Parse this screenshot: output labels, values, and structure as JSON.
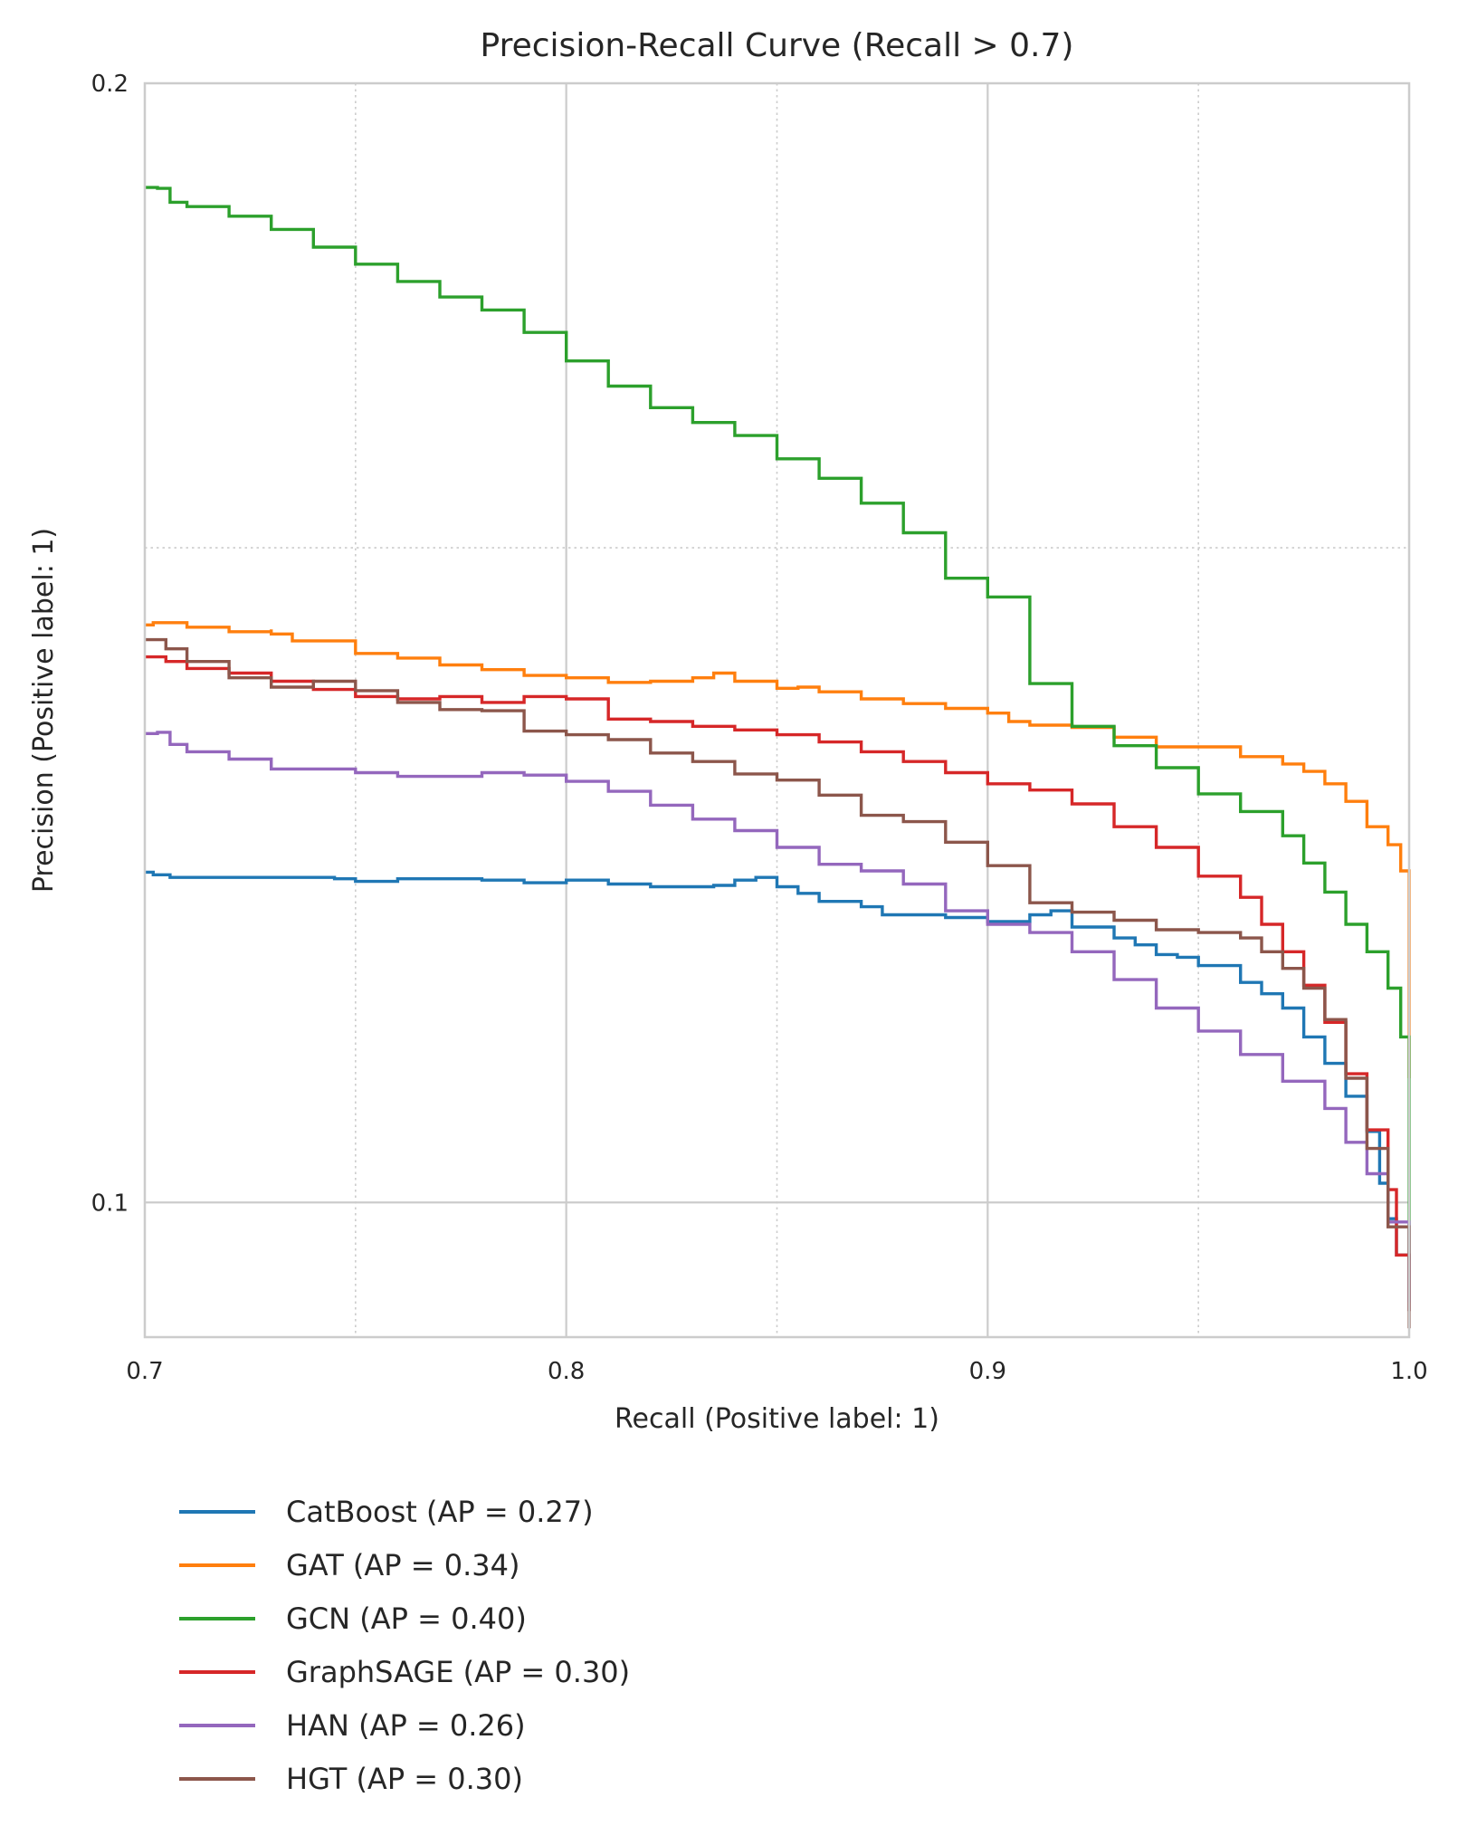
{
  "chart_data": {
    "type": "line",
    "title": "Precision-Recall Curve (Recall > 0.7)",
    "xlabel": "Recall (Positive label: 1)",
    "ylabel": "Precision (Positive label: 1)",
    "xlim": [
      0.7,
      1.0
    ],
    "ylim": [
      0.092,
      0.2
    ],
    "yscale": "log",
    "xticks": [
      0.7,
      0.8,
      0.9,
      1.0
    ],
    "xtick_labels": [
      "0.7",
      "0.8",
      "0.9",
      "1.0"
    ],
    "xminor": [
      0.75,
      0.85,
      0.95
    ],
    "yticks": [
      0.1,
      0.2
    ],
    "ytick_labels": [
      "0.1",
      "0.2"
    ],
    "yminor": [
      0.15
    ],
    "grid": true,
    "legend_position": "bottom-left, below plot",
    "series": [
      {
        "name": "CatBoost (AP = 0.27)",
        "color": "#1f77b4",
        "points": [
          [
            0.7,
            0.1227
          ],
          [
            0.702,
            0.1225
          ],
          [
            0.706,
            0.1223
          ],
          [
            0.72,
            0.1223
          ],
          [
            0.745,
            0.1222
          ],
          [
            0.75,
            0.122
          ],
          [
            0.76,
            0.1222
          ],
          [
            0.78,
            0.1221
          ],
          [
            0.79,
            0.1219
          ],
          [
            0.8,
            0.1221
          ],
          [
            0.81,
            0.1218
          ],
          [
            0.82,
            0.1216
          ],
          [
            0.835,
            0.1217
          ],
          [
            0.84,
            0.1221
          ],
          [
            0.845,
            0.1223
          ],
          [
            0.85,
            0.1216
          ],
          [
            0.855,
            0.1211
          ],
          [
            0.86,
            0.1205
          ],
          [
            0.87,
            0.1201
          ],
          [
            0.875,
            0.1195
          ],
          [
            0.89,
            0.1193
          ],
          [
            0.9,
            0.119
          ],
          [
            0.91,
            0.1195
          ],
          [
            0.915,
            0.1198
          ],
          [
            0.92,
            0.1186
          ],
          [
            0.93,
            0.1178
          ],
          [
            0.935,
            0.1173
          ],
          [
            0.94,
            0.1166
          ],
          [
            0.945,
            0.1164
          ],
          [
            0.95,
            0.1158
          ],
          [
            0.96,
            0.1146
          ],
          [
            0.965,
            0.1138
          ],
          [
            0.97,
            0.1128
          ],
          [
            0.975,
            0.1108
          ],
          [
            0.98,
            0.109
          ],
          [
            0.985,
            0.1068
          ],
          [
            0.99,
            0.1045
          ],
          [
            0.993,
            0.1012
          ],
          [
            0.995,
            0.099
          ],
          [
            0.997,
            0.0968
          ],
          [
            1.0,
            0.0935
          ]
        ]
      },
      {
        "name": "GAT (AP = 0.34)",
        "color": "#ff7f0e",
        "points": [
          [
            0.7,
            0.143
          ],
          [
            0.702,
            0.1432
          ],
          [
            0.71,
            0.1428
          ],
          [
            0.72,
            0.1424
          ],
          [
            0.73,
            0.1426
          ],
          [
            0.73,
            0.1422
          ],
          [
            0.735,
            0.1416
          ],
          [
            0.75,
            0.1405
          ],
          [
            0.76,
            0.1401
          ],
          [
            0.77,
            0.1395
          ],
          [
            0.78,
            0.1391
          ],
          [
            0.79,
            0.1386
          ],
          [
            0.8,
            0.1384
          ],
          [
            0.81,
            0.138
          ],
          [
            0.82,
            0.1381
          ],
          [
            0.83,
            0.1384
          ],
          [
            0.835,
            0.1388
          ],
          [
            0.84,
            0.1381
          ],
          [
            0.85,
            0.1375
          ],
          [
            0.855,
            0.1376
          ],
          [
            0.86,
            0.1372
          ],
          [
            0.87,
            0.1366
          ],
          [
            0.88,
            0.1362
          ],
          [
            0.89,
            0.1358
          ],
          [
            0.9,
            0.1354
          ],
          [
            0.905,
            0.1347
          ],
          [
            0.91,
            0.1344
          ],
          [
            0.92,
            0.1342
          ],
          [
            0.93,
            0.1334
          ],
          [
            0.94,
            0.1326
          ],
          [
            0.95,
            0.1326
          ],
          [
            0.96,
            0.1318
          ],
          [
            0.97,
            0.1312
          ],
          [
            0.975,
            0.1306
          ],
          [
            0.98,
            0.1296
          ],
          [
            0.985,
            0.1282
          ],
          [
            0.99,
            0.1262
          ],
          [
            0.995,
            0.1248
          ],
          [
            0.998,
            0.1228
          ],
          [
            1.0,
            0.1195
          ],
          [
            1.0,
            0.108
          ]
        ]
      },
      {
        "name": "GCN (AP = 0.40)",
        "color": "#2ca02c",
        "points": [
          [
            0.7,
            0.1875
          ],
          [
            0.703,
            0.1874
          ],
          [
            0.706,
            0.1858
          ],
          [
            0.71,
            0.1853
          ],
          [
            0.72,
            0.1842
          ],
          [
            0.73,
            0.1827
          ],
          [
            0.74,
            0.1807
          ],
          [
            0.75,
            0.1788
          ],
          [
            0.76,
            0.1769
          ],
          [
            0.77,
            0.1752
          ],
          [
            0.78,
            0.1738
          ],
          [
            0.79,
            0.1714
          ],
          [
            0.8,
            0.1684
          ],
          [
            0.81,
            0.1658
          ],
          [
            0.82,
            0.1636
          ],
          [
            0.83,
            0.1621
          ],
          [
            0.84,
            0.1608
          ],
          [
            0.85,
            0.1585
          ],
          [
            0.86,
            0.1566
          ],
          [
            0.87,
            0.1542
          ],
          [
            0.88,
            0.1514
          ],
          [
            0.89,
            0.1472
          ],
          [
            0.9,
            0.1455
          ],
          [
            0.91,
            0.1379
          ],
          [
            0.92,
            0.1343
          ],
          [
            0.93,
            0.1327
          ],
          [
            0.94,
            0.1309
          ],
          [
            0.95,
            0.1288
          ],
          [
            0.96,
            0.1274
          ],
          [
            0.97,
            0.1255
          ],
          [
            0.975,
            0.1234
          ],
          [
            0.98,
            0.1212
          ],
          [
            0.985,
            0.1188
          ],
          [
            0.99,
            0.1168
          ],
          [
            0.995,
            0.1142
          ],
          [
            0.998,
            0.1108
          ],
          [
            1.0,
            0.1055
          ],
          [
            1.0,
            0.0965
          ]
        ]
      },
      {
        "name": "GraphSAGE (AP = 0.30)",
        "color": "#d62728",
        "points": [
          [
            0.7,
            0.1402
          ],
          [
            0.705,
            0.1398
          ],
          [
            0.71,
            0.1392
          ],
          [
            0.72,
            0.1388
          ],
          [
            0.73,
            0.1381
          ],
          [
            0.74,
            0.1374
          ],
          [
            0.75,
            0.1368
          ],
          [
            0.76,
            0.1366
          ],
          [
            0.77,
            0.1368
          ],
          [
            0.78,
            0.1363
          ],
          [
            0.79,
            0.1368
          ],
          [
            0.8,
            0.1366
          ],
          [
            0.81,
            0.1349
          ],
          [
            0.82,
            0.1347
          ],
          [
            0.83,
            0.1343
          ],
          [
            0.84,
            0.134
          ],
          [
            0.85,
            0.1336
          ],
          [
            0.86,
            0.133
          ],
          [
            0.87,
            0.1322
          ],
          [
            0.88,
            0.1314
          ],
          [
            0.89,
            0.1305
          ],
          [
            0.9,
            0.1296
          ],
          [
            0.91,
            0.1291
          ],
          [
            0.92,
            0.128
          ],
          [
            0.93,
            0.1262
          ],
          [
            0.94,
            0.1246
          ],
          [
            0.95,
            0.1224
          ],
          [
            0.96,
            0.1208
          ],
          [
            0.965,
            0.1188
          ],
          [
            0.97,
            0.1168
          ],
          [
            0.975,
            0.1144
          ],
          [
            0.98,
            0.1118
          ],
          [
            0.985,
            0.1083
          ],
          [
            0.99,
            0.1046
          ],
          [
            0.995,
            0.1008
          ],
          [
            0.997,
            0.0968
          ],
          [
            1.0,
            0.0935
          ]
        ]
      },
      {
        "name": "HAN (AP = 0.26)",
        "color": "#9467bd",
        "points": [
          [
            0.7,
            0.1337
          ],
          [
            0.703,
            0.1338
          ],
          [
            0.706,
            0.1328
          ],
          [
            0.71,
            0.1322
          ],
          [
            0.72,
            0.1316
          ],
          [
            0.73,
            0.1308
          ],
          [
            0.75,
            0.1305
          ],
          [
            0.76,
            0.1302
          ],
          [
            0.78,
            0.1305
          ],
          [
            0.79,
            0.1303
          ],
          [
            0.8,
            0.1298
          ],
          [
            0.81,
            0.129
          ],
          [
            0.82,
            0.1279
          ],
          [
            0.83,
            0.1268
          ],
          [
            0.84,
            0.1259
          ],
          [
            0.85,
            0.1246
          ],
          [
            0.86,
            0.1233
          ],
          [
            0.87,
            0.1228
          ],
          [
            0.88,
            0.1218
          ],
          [
            0.89,
            0.1198
          ],
          [
            0.9,
            0.1188
          ],
          [
            0.91,
            0.1182
          ],
          [
            0.92,
            0.1168
          ],
          [
            0.93,
            0.1148
          ],
          [
            0.94,
            0.1128
          ],
          [
            0.95,
            0.1112
          ],
          [
            0.96,
            0.1096
          ],
          [
            0.97,
            0.1078
          ],
          [
            0.98,
            0.106
          ],
          [
            0.985,
            0.1038
          ],
          [
            0.99,
            0.1018
          ],
          [
            0.995,
            0.0988
          ],
          [
            1.0,
            0.094
          ]
        ]
      },
      {
        "name": "HGT (AP = 0.30)",
        "color": "#8c564b",
        "points": [
          [
            0.7,
            0.1417
          ],
          [
            0.705,
            0.1409
          ],
          [
            0.71,
            0.1398
          ],
          [
            0.72,
            0.1384
          ],
          [
            0.73,
            0.1376
          ],
          [
            0.74,
            0.1381
          ],
          [
            0.75,
            0.1373
          ],
          [
            0.76,
            0.1363
          ],
          [
            0.77,
            0.1357
          ],
          [
            0.78,
            0.1356
          ],
          [
            0.79,
            0.1339
          ],
          [
            0.8,
            0.1336
          ],
          [
            0.81,
            0.1332
          ],
          [
            0.82,
            0.1321
          ],
          [
            0.83,
            0.1314
          ],
          [
            0.84,
            0.1304
          ],
          [
            0.85,
            0.1299
          ],
          [
            0.86,
            0.1287
          ],
          [
            0.87,
            0.1271
          ],
          [
            0.88,
            0.1266
          ],
          [
            0.89,
            0.125
          ],
          [
            0.9,
            0.1232
          ],
          [
            0.91,
            0.1204
          ],
          [
            0.92,
            0.1197
          ],
          [
            0.93,
            0.1191
          ],
          [
            0.94,
            0.1184
          ],
          [
            0.95,
            0.1182
          ],
          [
            0.96,
            0.1178
          ],
          [
            0.965,
            0.1168
          ],
          [
            0.97,
            0.1156
          ],
          [
            0.975,
            0.1142
          ],
          [
            0.98,
            0.112
          ],
          [
            0.985,
            0.108
          ],
          [
            0.99,
            0.1034
          ],
          [
            0.995,
            0.0985
          ],
          [
            1.0,
            0.0925
          ]
        ]
      }
    ]
  }
}
